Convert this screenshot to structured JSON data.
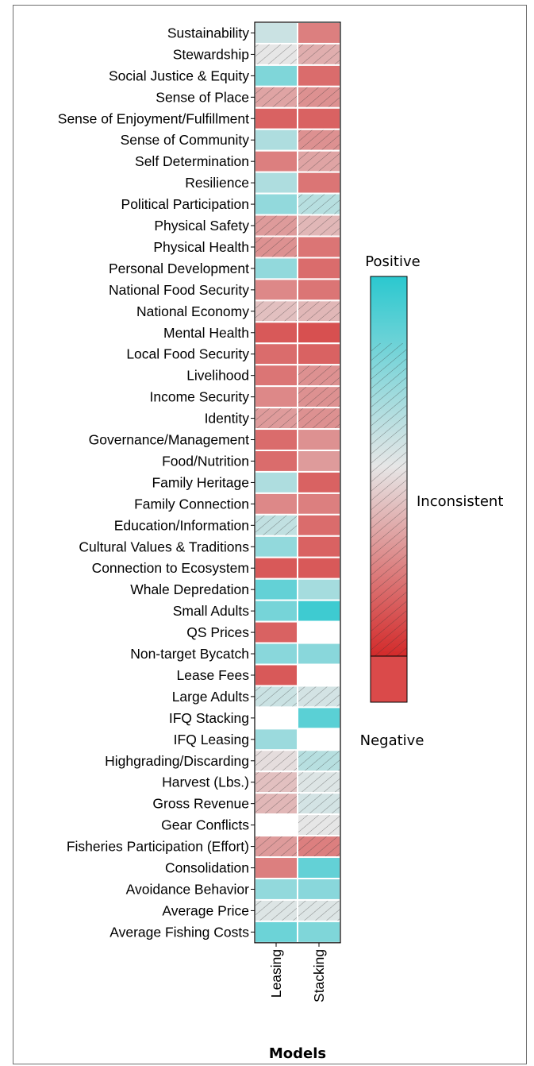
{
  "chart_data": {
    "type": "heatmap",
    "title": "",
    "xlabel": "Models",
    "ylabel": "",
    "columns": [
      "Leasing",
      "Stacking"
    ],
    "rows": [
      "Sustainability",
      "Stewardship",
      "Social Justice & Equity",
      "Sense of Place",
      "Sense of Enjoyment/Fulfillment",
      "Sense of Community",
      "Self Determination",
      "Resilience",
      "Political Participation",
      "Physical Safety",
      "Physical Health",
      "Personal Development",
      "National Food Security",
      "National Economy",
      "Mental Health",
      "Local Food Security",
      "Livelihood",
      "Income Security",
      "Identity",
      "Governance/Management",
      "Food/Nutrition",
      "Family Heritage",
      "Family Connection",
      "Education/Information",
      "Cultural Values & Traditions",
      "Connection to Ecosystem",
      "Whale Depredation",
      "Small Adults",
      "QS Prices",
      "Non-target Bycatch",
      "Lease Fees",
      "Large Adults",
      "IFQ Stacking",
      "IFQ Leasing",
      "Highgrading/Discarding",
      "Harvest (Lbs.)",
      "Gross Revenue",
      "Gear Conflicts",
      "Fisheries Participation (Effort)",
      "Consolidation",
      "Avoidance Behavior",
      "Average Price",
      "Average Fishing Costs"
    ],
    "values": [
      [
        0.15,
        -0.55
      ],
      [
        0.0,
        -0.3
      ],
      [
        0.55,
        -0.65
      ],
      [
        -0.35,
        -0.45
      ],
      [
        -0.7,
        -0.7
      ],
      [
        0.3,
        -0.45
      ],
      [
        -0.55,
        -0.35
      ],
      [
        0.3,
        -0.6
      ],
      [
        0.45,
        0.25
      ],
      [
        -0.4,
        -0.25
      ],
      [
        -0.45,
        -0.6
      ],
      [
        0.45,
        -0.65
      ],
      [
        -0.5,
        -0.6
      ],
      [
        -0.2,
        -0.25
      ],
      [
        -0.75,
        -0.8
      ],
      [
        -0.65,
        -0.7
      ],
      [
        -0.6,
        -0.45
      ],
      [
        -0.5,
        -0.45
      ],
      [
        -0.4,
        -0.45
      ],
      [
        -0.65,
        -0.45
      ],
      [
        -0.65,
        -0.4
      ],
      [
        0.3,
        -0.7
      ],
      [
        -0.5,
        -0.55
      ],
      [
        0.2,
        -0.65
      ],
      [
        0.45,
        -0.7
      ],
      [
        -0.75,
        -0.75
      ],
      [
        0.7,
        0.35
      ],
      [
        0.6,
        0.9
      ],
      [
        -0.7,
        null
      ],
      [
        0.5,
        0.5
      ],
      [
        -0.75,
        null
      ],
      [
        0.15,
        0.1
      ],
      [
        null,
        0.75
      ],
      [
        0.4,
        null
      ],
      [
        -0.05,
        0.25
      ],
      [
        -0.2,
        0.05
      ],
      [
        -0.25,
        0.1
      ],
      [
        null,
        0.0
      ],
      [
        -0.4,
        -0.55
      ],
      [
        -0.55,
        0.7
      ],
      [
        0.45,
        0.5
      ],
      [
        0.05,
        0.05
      ],
      [
        0.65,
        0.55
      ]
    ],
    "inconsistent": [
      [
        false,
        false
      ],
      [
        true,
        true
      ],
      [
        false,
        false
      ],
      [
        true,
        true
      ],
      [
        false,
        false
      ],
      [
        false,
        true
      ],
      [
        false,
        true
      ],
      [
        false,
        false
      ],
      [
        false,
        true
      ],
      [
        true,
        true
      ],
      [
        true,
        false
      ],
      [
        false,
        false
      ],
      [
        false,
        false
      ],
      [
        true,
        true
      ],
      [
        false,
        false
      ],
      [
        false,
        false
      ],
      [
        false,
        true
      ],
      [
        false,
        true
      ],
      [
        true,
        true
      ],
      [
        false,
        false
      ],
      [
        false,
        false
      ],
      [
        false,
        false
      ],
      [
        false,
        false
      ],
      [
        true,
        false
      ],
      [
        false,
        false
      ],
      [
        false,
        false
      ],
      [
        false,
        false
      ],
      [
        false,
        false
      ],
      [
        false,
        false
      ],
      [
        false,
        false
      ],
      [
        false,
        false
      ],
      [
        true,
        true
      ],
      [
        false,
        false
      ],
      [
        false,
        false
      ],
      [
        true,
        true
      ],
      [
        true,
        true
      ],
      [
        true,
        true
      ],
      [
        false,
        true
      ],
      [
        true,
        true
      ],
      [
        false,
        false
      ],
      [
        false,
        false
      ],
      [
        true,
        true
      ],
      [
        false,
        false
      ]
    ],
    "legend": {
      "top_label": "Positive",
      "middle_label": "Inconsistent",
      "bottom_label": "Negative",
      "placement": "right"
    },
    "colors": {
      "positive": "#2bc8cf",
      "neutral": "#e6e6e6",
      "negative": "#d32a2a",
      "empty": "#ffffff",
      "hatch": "#333333"
    }
  }
}
